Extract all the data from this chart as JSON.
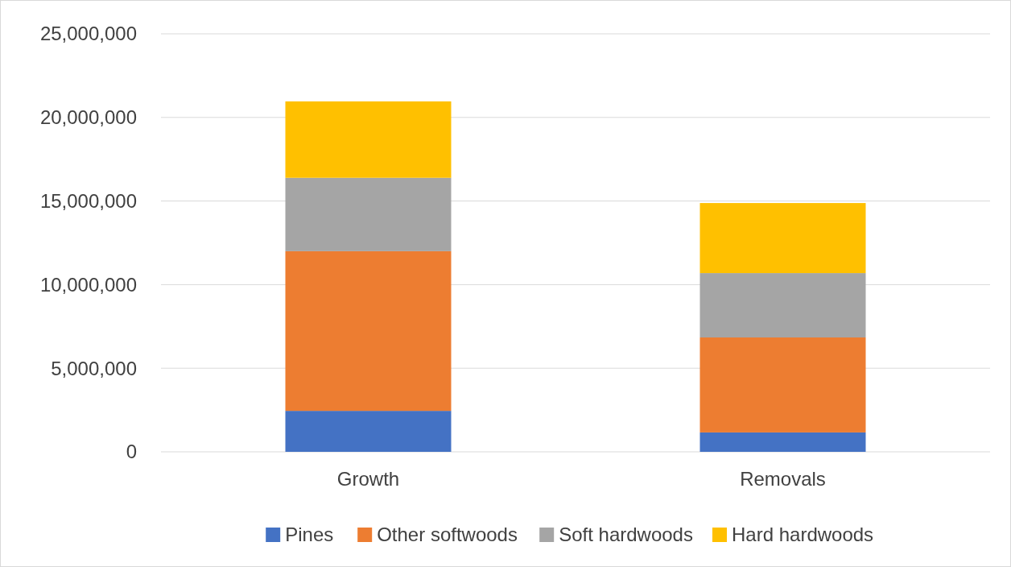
{
  "chart_data": {
    "type": "bar",
    "stacked": true,
    "categories": [
      "Growth",
      "Removals"
    ],
    "series": [
      {
        "name": "Pines",
        "color": "#4472c4",
        "values": [
          2450000,
          1160000
        ]
      },
      {
        "name": "Other softwoods",
        "color": "#ed7d31",
        "values": [
          9550000,
          5680000
        ]
      },
      {
        "name": "Soft hardwoods",
        "color": "#a5a5a5",
        "values": [
          4390000,
          3850000
        ]
      },
      {
        "name": "Hard hardwoods",
        "color": "#ffc000",
        "values": [
          4570000,
          4190000
        ]
      }
    ],
    "ylim": [
      0,
      25000000
    ],
    "yticks": [
      {
        "value": 0,
        "label": "0"
      },
      {
        "value": 5000000,
        "label": "5,000,000"
      },
      {
        "value": 10000000,
        "label": "10,000,000"
      },
      {
        "value": 15000000,
        "label": "15,000,000"
      },
      {
        "value": 20000000,
        "label": "20,000,000"
      },
      {
        "value": 25000000,
        "label": "25,000,000"
      }
    ],
    "grid": "y",
    "legend": "bottom"
  }
}
